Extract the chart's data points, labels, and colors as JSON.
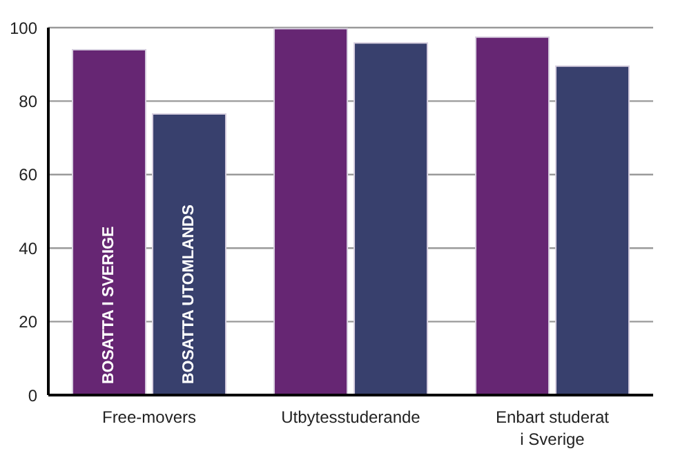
{
  "chart_data": {
    "type": "bar",
    "categories": [
      "Free-movers",
      "Utbytesstuderande",
      "Enbart studerat i Sverige"
    ],
    "series": [
      {
        "name": "BOSATTA I SVERIGE",
        "color": "#662673",
        "values": [
          94,
          99.7,
          97.4
        ]
      },
      {
        "name": "BOSATTA UTOMLANDS",
        "color": "#38406d",
        "values": [
          76.5,
          95.8,
          89.5
        ]
      }
    ],
    "ylim": [
      0,
      100
    ],
    "yticks": [
      0,
      20,
      40,
      60,
      80,
      100
    ],
    "grid": "y",
    "legend": false
  }
}
